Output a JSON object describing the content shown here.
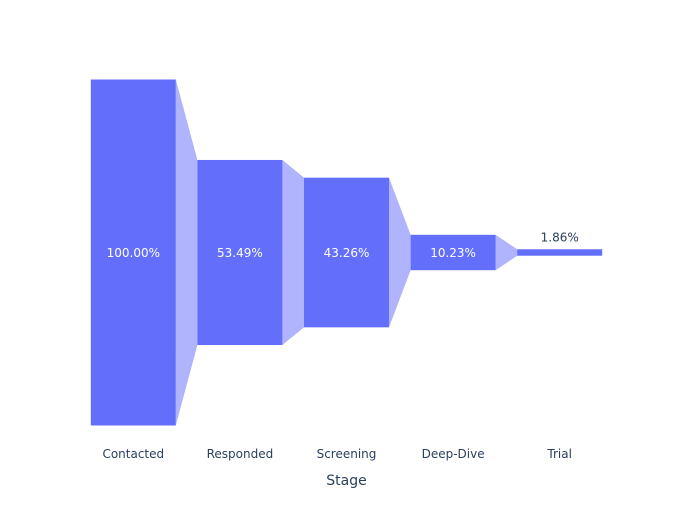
{
  "chart_data": {
    "type": "funnel",
    "orientation": "vertical-bars",
    "categories": [
      "Contacted",
      "Responded",
      "Screening",
      "Deep-Dive",
      "Trial"
    ],
    "values": [
      100.0,
      53.49,
      43.26,
      10.23,
      1.86
    ],
    "labels": [
      "100.00%",
      "53.49%",
      "43.26%",
      "10.23%",
      "1.86%"
    ],
    "xlabel": "Stage",
    "ylabel": "",
    "title": "",
    "bar_color": "#636efa",
    "connector_color": "#b0b4fc",
    "text_color_inside": "#ffffff",
    "text_color_outside": "#2a3f5f"
  }
}
